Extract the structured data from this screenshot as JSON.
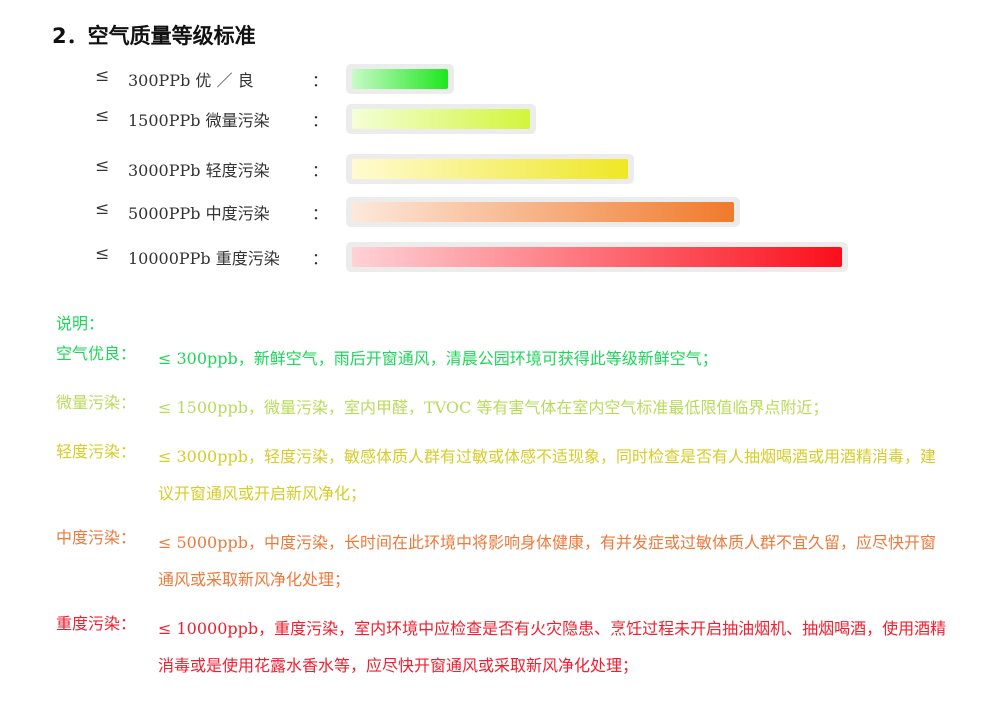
{
  "heading": "2．空气质量等级标准",
  "le_symbol": "≤",
  "levels": [
    {
      "name": "300PPb 优 ／ 良",
      "colon": "：",
      "start": "#c8fbc8",
      "end": "#1ee61e",
      "track_w": 108
    },
    {
      "name": "1500PPb 微量污染",
      "colon": "：",
      "start": "#f3ffd6",
      "end": "#d2f53c",
      "track_w": 190
    },
    {
      "name": "3000PPb 轻度污染",
      "colon": "：",
      "start": "#fffbd2",
      "end": "#efe725",
      "track_w": 288
    },
    {
      "name": "5000PPb 中度污染",
      "colon": "：",
      "start": "#fde8dc",
      "end": "#f07a2a",
      "track_w": 394
    },
    {
      "name": "10000PPb 重度污染",
      "colon": "：",
      "start": "#ffd2d6",
      "end": "#fb0e1a",
      "track_w": 502
    }
  ],
  "notes_title": "说明：",
  "notes_title_color": "#1ed65a",
  "notes": [
    {
      "label": "空气优良：",
      "text": "≤ 300ppb，新鲜空气，雨后开窗通风，清晨公园环境可获得此等级新鲜空气；",
      "color": "#1ed65a"
    },
    {
      "label": "微量污染：",
      "text": "≤ 1500ppb，微量污染，室内甲醛，TVOC 等有害气体在室内空气标准最低限值临界点附近；",
      "color": "#b8db5b"
    },
    {
      "label": "轻度污染：",
      "text": "≤ 3000ppb，轻度污染，敏感体质人群有过敏或体感不适现象，同时检查是否有人抽烟喝酒或用酒精消毒，建议开窗通风或开启新风净化；",
      "color": "#d6cd28"
    },
    {
      "label": "中度污染：",
      "text": "≤ 5000ppb，中度污染，长时间在此环境中将影响身体健康，有并发症或过敏体质人群不宜久留，应尽快开窗通风或采取新风净化处理；",
      "color": "#ec7a3c"
    },
    {
      "label": "重度污染：",
      "text": "≤ 10000ppb，重度污染，室内环境中应检查是否有火灾隐患、烹饪过程未开启抽油烟机、抽烟喝酒，使用酒精消毒或是使用花露水香水等，应尽快开窗通风或采取新风净化处理；",
      "color": "#f01e2e"
    }
  ]
}
